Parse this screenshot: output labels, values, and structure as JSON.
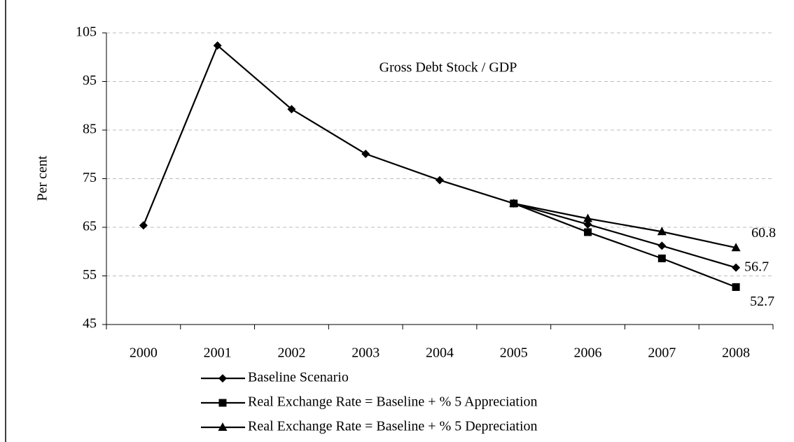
{
  "chart_data": {
    "type": "line",
    "title": "Gross Debt Stock / GDP",
    "y_label": "Per cent",
    "categories": [
      "2000",
      "2001",
      "2002",
      "2003",
      "2004",
      "2005",
      "2006",
      "2007",
      "2008"
    ],
    "series": [
      {
        "name": "Baseline Scenario",
        "color": "#000000",
        "marker": "diamond",
        "values": [
          65.4,
          102.4,
          89.3,
          80.1,
          74.7,
          69.9,
          65.6,
          61.2,
          56.7
        ],
        "value_labels": [
          null,
          null,
          null,
          null,
          null,
          null,
          null,
          null,
          "56.7"
        ]
      },
      {
        "name": "Real Exchange Rate = Baseline + % 5 Appreciation",
        "color": "#000000",
        "marker": "square",
        "values": [
          null,
          null,
          null,
          null,
          null,
          69.9,
          64.0,
          58.6,
          52.7
        ],
        "value_labels": [
          null,
          null,
          null,
          null,
          null,
          null,
          null,
          null,
          "52.7"
        ]
      },
      {
        "name": "Real Exchange Rate = Baseline + % 5 Depreciation",
        "color": "#000000",
        "marker": "triangle",
        "values": [
          null,
          null,
          null,
          null,
          null,
          69.9,
          66.8,
          64.1,
          60.8
        ],
        "value_labels": [
          null,
          null,
          null,
          null,
          null,
          null,
          null,
          null,
          "60.8"
        ]
      }
    ],
    "ylim": [
      45,
      105
    ],
    "yticks": [
      45,
      55,
      65,
      75,
      85,
      95,
      105
    ],
    "grid": true
  }
}
